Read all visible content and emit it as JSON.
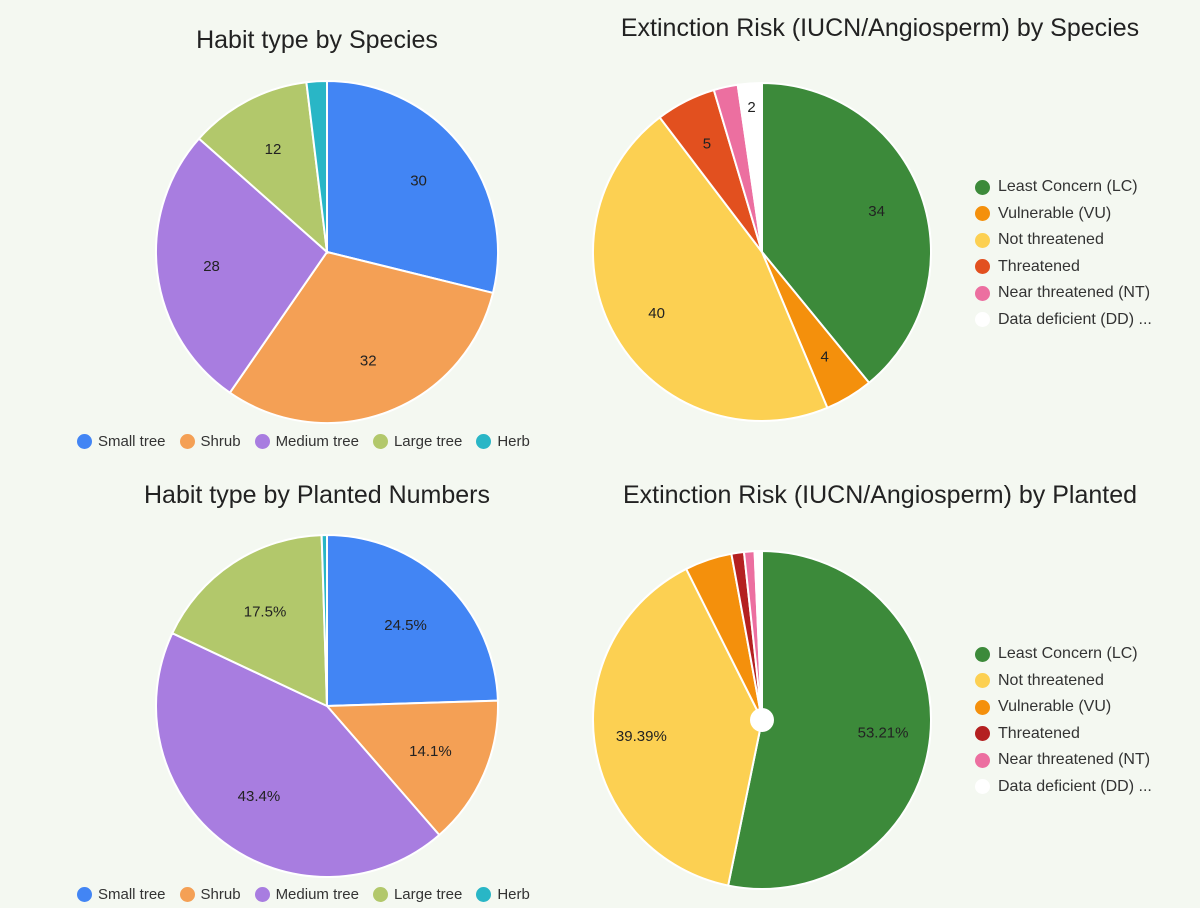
{
  "chart_data": [
    {
      "type": "pie",
      "title": "Habit type by Species",
      "categories": [
        "Small tree",
        "Shrub",
        "Medium tree",
        "Large tree",
        "Herb"
      ],
      "values": [
        30,
        32,
        28,
        12,
        2
      ],
      "data_labels": [
        "30",
        "32",
        "28",
        "12",
        ""
      ],
      "colors": [
        "#4285f4",
        "#f4a055",
        "#a87de0",
        "#b2c86b",
        "#29b6c6"
      ],
      "legend_position": "bottom"
    },
    {
      "type": "pie",
      "title": "Extinction Risk (IUCN/Angiosperm) by Species",
      "categories": [
        "Least Concern (LC)",
        "Vulnerable (VU)",
        "Not threatened",
        "Threatened",
        "Near threatened (NT)",
        "Data deficient (DD) ..."
      ],
      "values": [
        34,
        4,
        40,
        5,
        2,
        2
      ],
      "data_labels": [
        "34",
        "4",
        "40",
        "5",
        "",
        "2"
      ],
      "colors": [
        "#3c8a3a",
        "#f4900c",
        "#fcd052",
        "#e2501f",
        "#ec6fa0",
        "#ffffff"
      ],
      "legend_position": "right"
    },
    {
      "type": "pie",
      "title": "Habit type by Planted Numbers",
      "categories": [
        "Small tree",
        "Shrub",
        "Medium tree",
        "Large tree",
        "Herb"
      ],
      "values": [
        24.5,
        14.1,
        43.4,
        17.5,
        0.5
      ],
      "data_labels": [
        "24.5%",
        "14.1%",
        "43.4%",
        "17.5%",
        ""
      ],
      "colors": [
        "#4285f4",
        "#f4a055",
        "#a87de0",
        "#b2c86b",
        "#29b6c6"
      ],
      "legend_position": "bottom"
    },
    {
      "type": "pie",
      "title": "Extinction Risk (IUCN/Angiosperm) by Planted",
      "categories": [
        "Least Concern (LC)",
        "Not threatened",
        "Vulnerable (VU)",
        "Threatened",
        "Near threatened (NT)",
        "Data deficient (DD) ..."
      ],
      "values": [
        53.21,
        39.39,
        4.5,
        1.2,
        1.0,
        0.7
      ],
      "data_labels": [
        "53.21%",
        "39.39%",
        "",
        "",
        "",
        ""
      ],
      "colors": [
        "#3c8a3a",
        "#fcd052",
        "#f4900c",
        "#b42020",
        "#ec6fa0",
        "#ffffff"
      ],
      "legend_position": "right"
    }
  ]
}
